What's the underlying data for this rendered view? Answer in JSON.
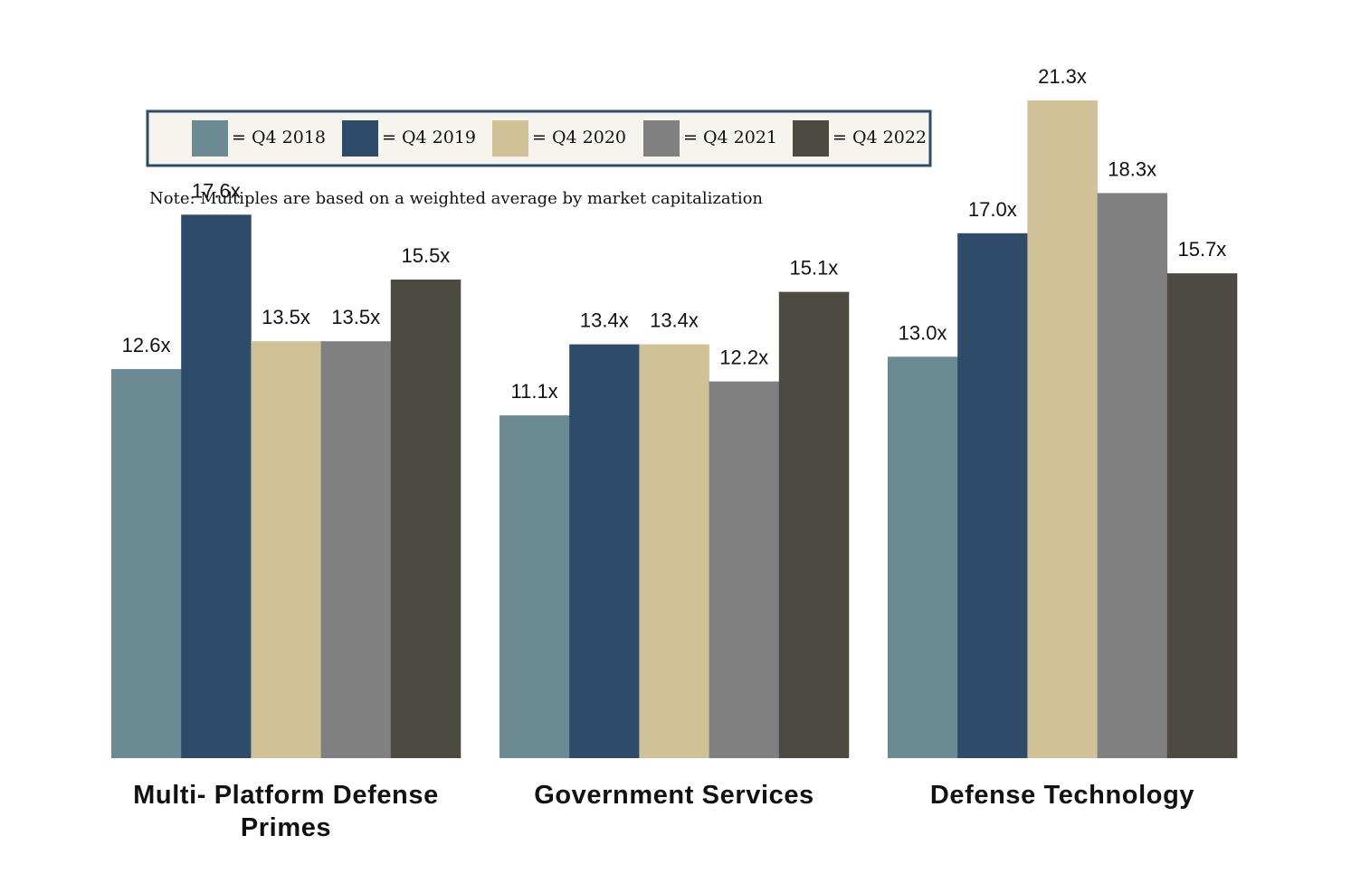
{
  "colors": {
    "Q4 2018": "#6c8a93",
    "Q4 2019": "#2f4b6a",
    "Q4 2020": "#d0c196",
    "Q4 2021": "#808080",
    "Q4 2022": "#4d4a42",
    "legend_border": "#2f4b6a",
    "legend_bg": "#f5f4ee"
  },
  "note": "Note: Multiples are based on a weighted average by market capitalization",
  "chart_data": {
    "type": "bar",
    "title": "",
    "xlabel": "",
    "ylabel": "",
    "ylim": [
      0,
      22
    ],
    "grid": false,
    "legend_placement": "top-left",
    "value_suffix": "x",
    "categories": [
      [
        "Multi- Platform Defense",
        "Primes"
      ],
      [
        "Government Services"
      ],
      [
        "Defense Technology"
      ]
    ],
    "series": [
      {
        "name": "Q4 2018",
        "legend_label": "= Q4 2018",
        "values": [
          12.6,
          11.1,
          13.0
        ]
      },
      {
        "name": "Q4 2019",
        "legend_label": "= Q4 2019",
        "values": [
          17.6,
          13.4,
          17.0
        ]
      },
      {
        "name": "Q4 2020",
        "legend_label": "= Q4 2020",
        "values": [
          13.5,
          13.4,
          21.3
        ]
      },
      {
        "name": "Q4 2021",
        "legend_label": "= Q4 2021",
        "values": [
          13.5,
          12.2,
          18.3
        ]
      },
      {
        "name": "Q4 2022",
        "legend_label": "= Q4 2022",
        "values": [
          15.5,
          15.1,
          15.7
        ]
      }
    ]
  }
}
